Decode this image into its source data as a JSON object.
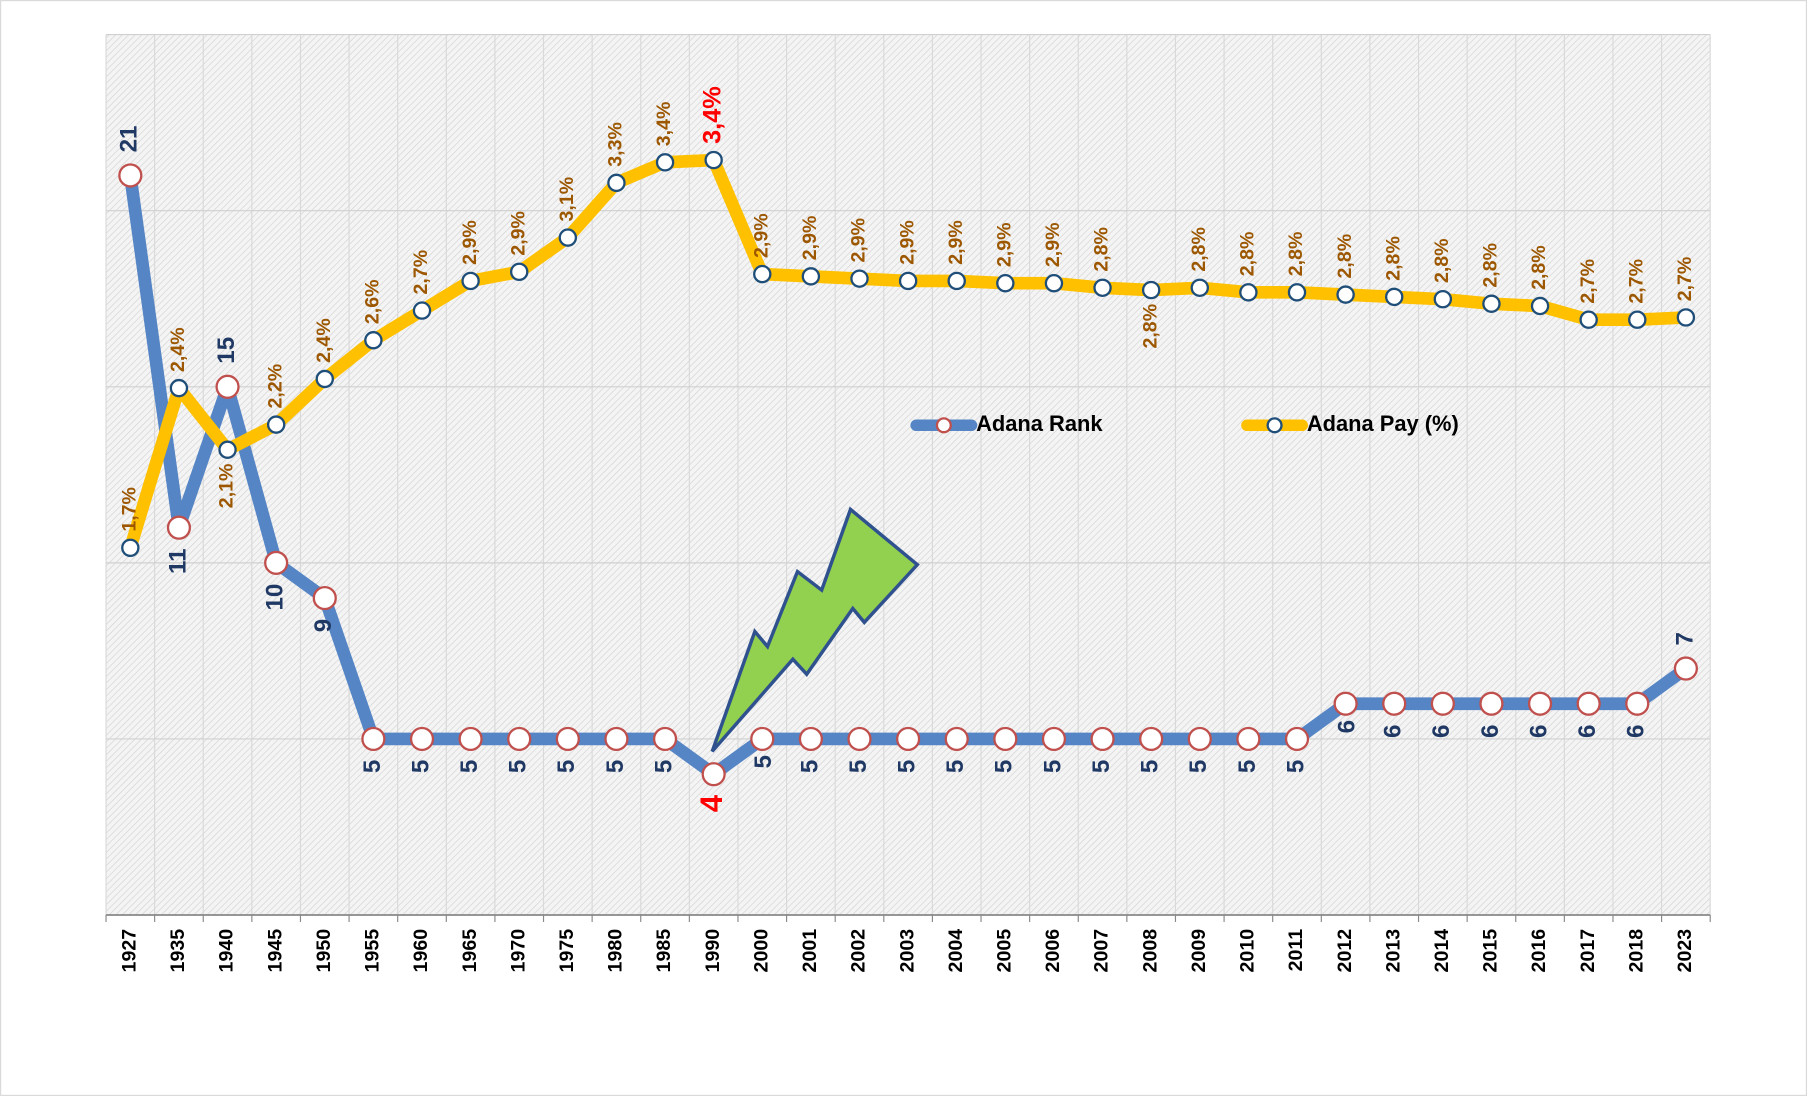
{
  "chart_data": {
    "type": "line",
    "categories": [
      "1927",
      "1935",
      "1940",
      "1945",
      "1950",
      "1955",
      "1960",
      "1965",
      "1970",
      "1975",
      "1980",
      "1985",
      "1990",
      "2000",
      "2001",
      "2002",
      "2003",
      "2004",
      "2005",
      "2006",
      "2007",
      "2008",
      "2009",
      "2010",
      "2011",
      "2012",
      "2013",
      "2014",
      "2015",
      "2016",
      "2017",
      "2018",
      "2023"
    ],
    "series": [
      {
        "name": "Adana Rank",
        "color": "#5585c5",
        "marker_stroke": "#c0504d",
        "label_color": "#1f3864",
        "values": [
          21,
          11,
          15,
          10,
          9,
          5,
          5,
          5,
          5,
          5,
          5,
          5,
          4,
          5,
          5,
          5,
          5,
          5,
          5,
          5,
          5,
          5,
          5,
          5,
          5,
          6,
          6,
          6,
          6,
          6,
          6,
          6,
          7
        ]
      },
      {
        "name": "Adana Pay (%)",
        "color": "#ffc000",
        "marker_stroke": "#1f4e79",
        "label_color": "#9c5700",
        "axis": "y2",
        "values": [
          1.7,
          2.4,
          2.13,
          2.24,
          2.44,
          2.61,
          2.74,
          2.87,
          2.91,
          3.06,
          3.3,
          3.39,
          3.4,
          2.9,
          2.89,
          2.88,
          2.87,
          2.87,
          2.86,
          2.86,
          2.84,
          2.83,
          2.84,
          2.82,
          2.82,
          2.81,
          2.8,
          2.79,
          2.77,
          2.76,
          2.7,
          2.7,
          2.71
        ],
        "value_labels": [
          "1,7%",
          "2,4%",
          "2,1%",
          "2,2%",
          "2,4%",
          "2,6%",
          "2,7%",
          "2,9%",
          "2,9%",
          "3,1%",
          "3,3%",
          "3,4%",
          "3,4%",
          "2,9%",
          "2,9%",
          "2,9%",
          "2,9%",
          "2,9%",
          "2,9%",
          "2,9%",
          "2,8%",
          "2,8%",
          "2,8%",
          "2,8%",
          "2,8%",
          "2,8%",
          "2,8%",
          "2,8%",
          "2,8%",
          "2,8%",
          "2,7%",
          "2,7%",
          "2,7%"
        ]
      }
    ],
    "highlight_color": "#ff0000",
    "ylim": [
      0,
      25
    ],
    "yticks": [
      0,
      5,
      10,
      15,
      20,
      25
    ],
    "y2lim": [
      0.09,
      3.95
    ],
    "grid": true,
    "legend": "center"
  }
}
